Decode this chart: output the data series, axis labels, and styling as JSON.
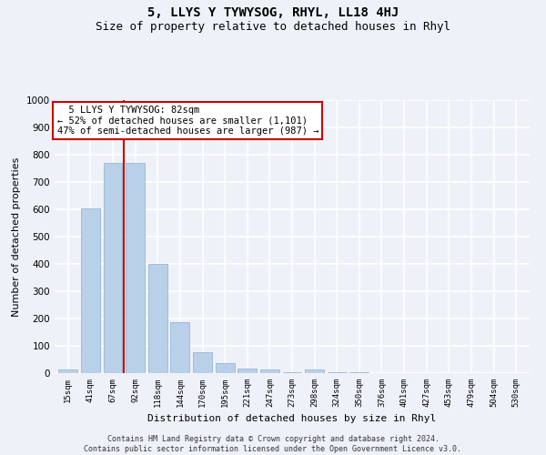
{
  "title": "5, LLYS Y TYWYSOG, RHYL, LL18 4HJ",
  "subtitle": "Size of property relative to detached houses in Rhyl",
  "xlabel": "Distribution of detached houses by size in Rhyl",
  "ylabel": "Number of detached properties",
  "categories": [
    "15sqm",
    "41sqm",
    "67sqm",
    "92sqm",
    "118sqm",
    "144sqm",
    "170sqm",
    "195sqm",
    "221sqm",
    "247sqm",
    "273sqm",
    "298sqm",
    "324sqm",
    "350sqm",
    "376sqm",
    "401sqm",
    "427sqm",
    "453sqm",
    "479sqm",
    "504sqm",
    "530sqm"
  ],
  "values": [
    13,
    605,
    770,
    770,
    400,
    187,
    76,
    37,
    17,
    15,
    5,
    12,
    5,
    5,
    0,
    0,
    0,
    0,
    0,
    0,
    0
  ],
  "bar_color": "#b8d0e8",
  "bar_edge_color": "#8ab0d0",
  "vline_color": "#cc0000",
  "vline_x": 2.5,
  "annotation_text": "  5 LLYS Y TYWYSOG: 82sqm  \n← 52% of detached houses are smaller (1,101)\n47% of semi-detached houses are larger (987) →",
  "annotation_box_color": "#ffffff",
  "annotation_box_edge": "#cc0000",
  "ylim": [
    0,
    1000
  ],
  "yticks": [
    0,
    100,
    200,
    300,
    400,
    500,
    600,
    700,
    800,
    900,
    1000
  ],
  "footnote": "Contains HM Land Registry data © Crown copyright and database right 2024.\nContains public sector information licensed under the Open Government Licence v3.0.",
  "bg_color": "#eef2f8",
  "grid_color": "#ffffff",
  "title_fontsize": 10,
  "subtitle_fontsize": 9
}
